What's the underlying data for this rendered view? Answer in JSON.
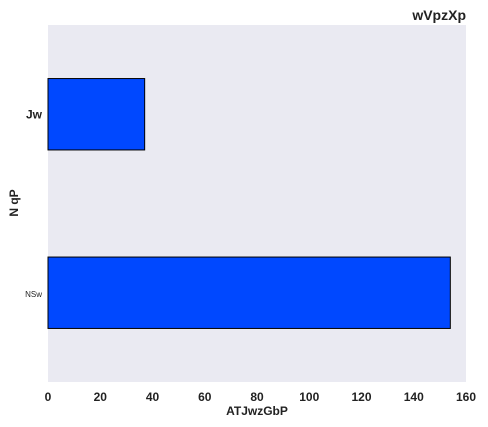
{
  "chart_data": {
    "type": "bar",
    "orientation": "horizontal",
    "title": "wVpzXp",
    "xlabel": "ATJwzGbP",
    "ylabel": "N  qP",
    "categories": [
      "Jw",
      "NSw"
    ],
    "values": [
      37,
      154
    ],
    "xlim": [
      0,
      160
    ],
    "xticks": [
      0,
      20,
      40,
      60,
      80,
      100,
      120,
      140,
      160
    ],
    "grid": false,
    "bar_color": "#0048ff",
    "background_color": "#eaeaf2"
  }
}
